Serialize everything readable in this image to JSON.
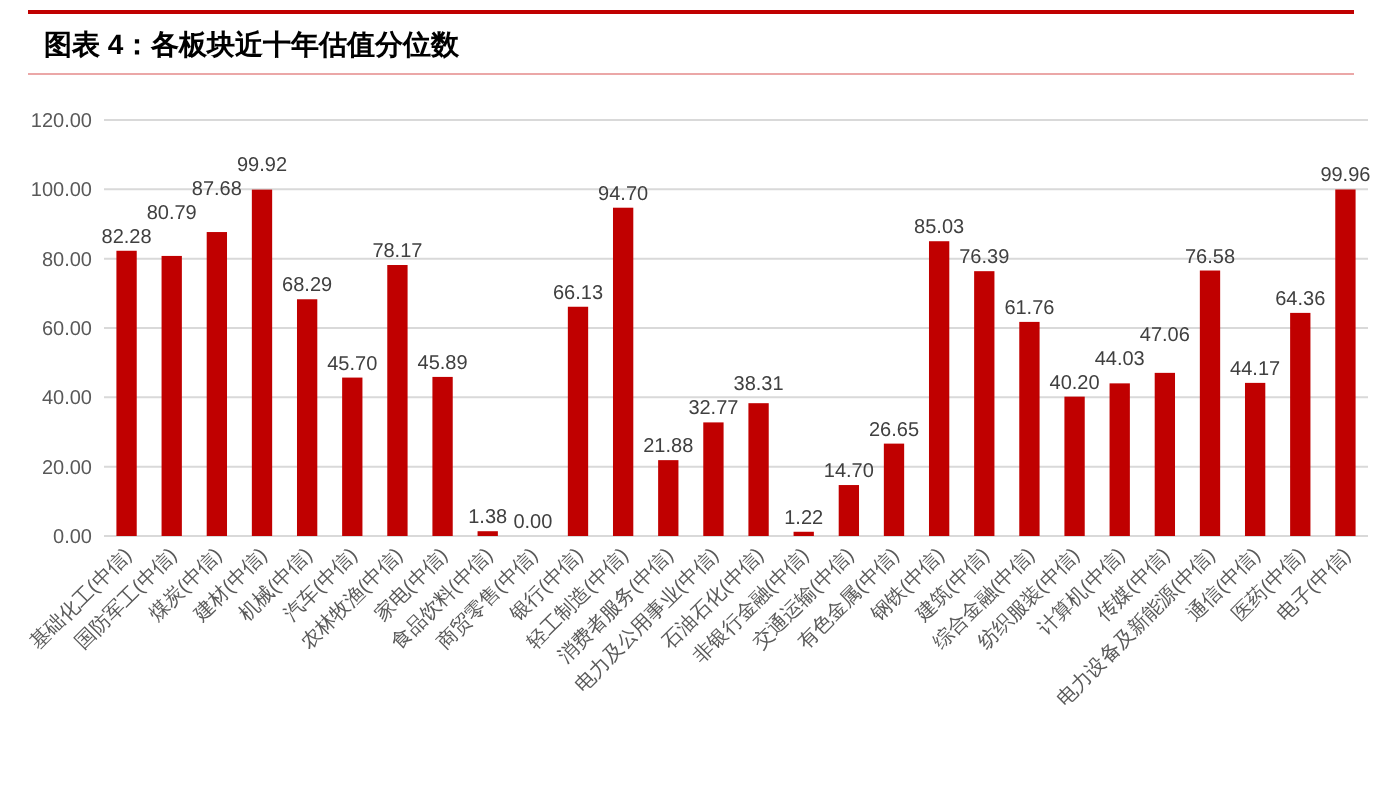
{
  "chart_data": {
    "type": "bar",
    "title": "图表 4：各板块近十年估值分位数",
    "categories": [
      "基础化工(中信)",
      "国防军工(中信)",
      "煤炭(中信)",
      "建材(中信)",
      "机械(中信)",
      "汽车(中信)",
      "农林牧渔(中信)",
      "家电(中信)",
      "食品饮料(中信)",
      "商贸零售(中信)",
      "银行(中信)",
      "轻工制造(中信)",
      "消费者服务(中信)",
      "电力及公用事业(中信)",
      "石油石化(中信)",
      "非银行金融(中信)",
      "交通运输(中信)",
      "有色金属(中信)",
      "钢铁(中信)",
      "建筑(中信)",
      "综合金融(中信)",
      "纺织服装(中信)",
      "计算机(中信)",
      "传媒(中信)",
      "电力设备及新能源(中信)",
      "通信(中信)",
      "医药(中信)",
      "电子(中信)"
    ],
    "values": [
      82.28,
      80.79,
      87.68,
      99.92,
      68.29,
      45.7,
      78.17,
      45.89,
      1.38,
      0.0,
      66.13,
      94.7,
      21.88,
      32.77,
      38.31,
      1.22,
      14.7,
      26.65,
      85.03,
      76.39,
      61.76,
      40.2,
      44.03,
      47.06,
      76.58,
      44.17,
      64.36,
      99.96
    ],
    "value_labels": [
      "82.28",
      "80.79",
      "87.68",
      "99.92",
      "68.29",
      "45.70",
      "78.17",
      "45.89",
      "1.38",
      "0.00",
      "66.13",
      "94.70",
      "21.88",
      "32.77",
      "38.31",
      "1.22",
      "14.70",
      "26.65",
      "85.03",
      "76.39",
      "61.76",
      "40.20",
      "44.03",
      "47.06",
      "76.58",
      "44.17",
      "64.36",
      "99.96"
    ],
    "color": "#c00000",
    "ylim": [
      0,
      120
    ],
    "yticks": [
      {
        "value": 0,
        "label": "0.00"
      },
      {
        "value": 20,
        "label": "20.00"
      },
      {
        "value": 40,
        "label": "40.00"
      },
      {
        "value": 60,
        "label": "60.00"
      },
      {
        "value": 80,
        "label": "80.00"
      },
      {
        "value": 100,
        "label": "100.00"
      },
      {
        "value": 120,
        "label": "120.00"
      }
    ],
    "grid": "y"
  }
}
